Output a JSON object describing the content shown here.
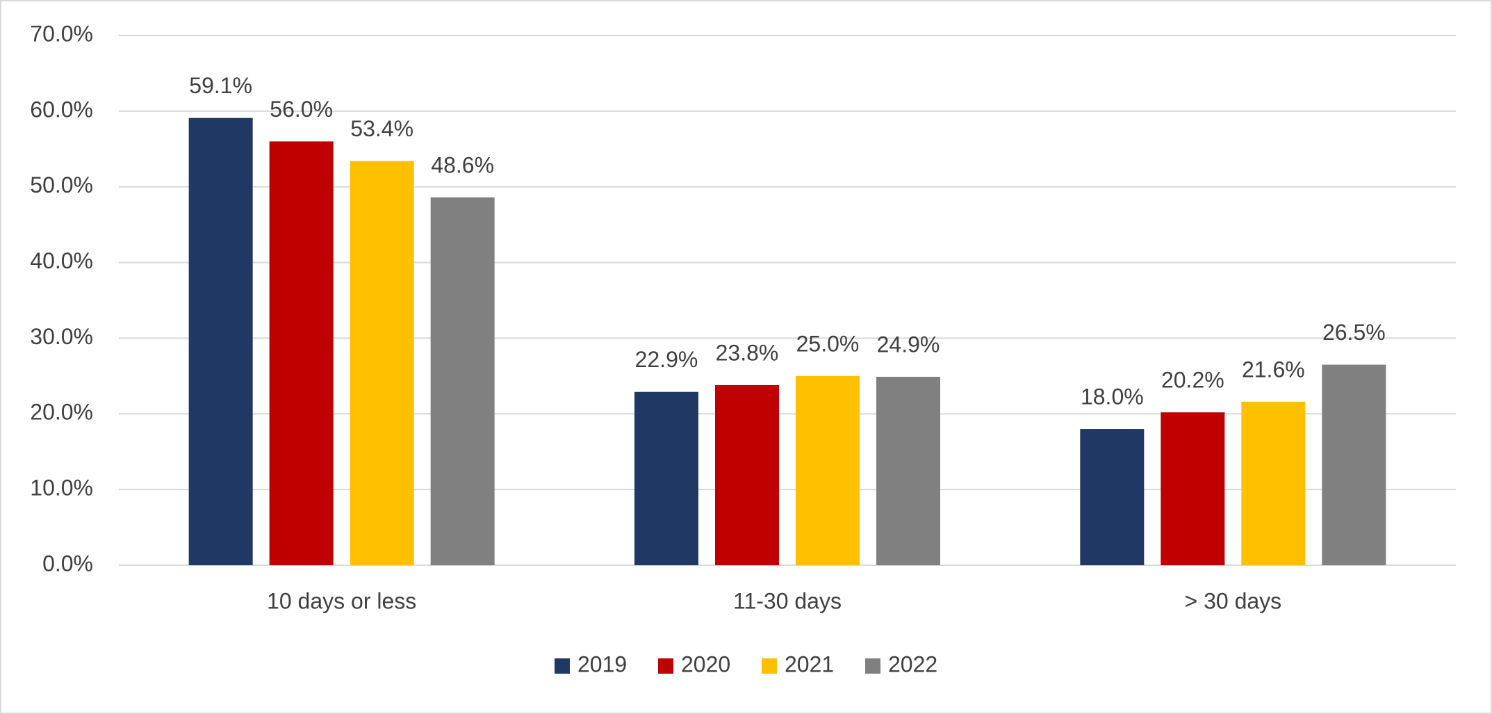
{
  "chart_data": {
    "type": "bar",
    "categories": [
      "10 days or less",
      "11-30 days",
      "> 30 days"
    ],
    "series": [
      {
        "name": "2019",
        "color": "#203864",
        "values": [
          59.1,
          22.9,
          18.0
        ],
        "value_labels": [
          "59.1%",
          "22.9%",
          "18.0%"
        ]
      },
      {
        "name": "2020",
        "color": "#c00000",
        "values": [
          56.0,
          23.8,
          20.2
        ],
        "value_labels": [
          "56.0%",
          "23.8%",
          "20.2%"
        ]
      },
      {
        "name": "2021",
        "color": "#ffc000",
        "values": [
          53.4,
          25.0,
          21.6
        ],
        "value_labels": [
          "53.4%",
          "25.0%",
          "21.6%"
        ]
      },
      {
        "name": "2022",
        "color": "#808080",
        "values": [
          48.6,
          24.9,
          26.5
        ],
        "value_labels": [
          "48.6%",
          "24.9%",
          "26.5%"
        ]
      }
    ],
    "ylim": [
      0,
      70
    ],
    "yticks": [
      {
        "value": 0,
        "label": "0.0%"
      },
      {
        "value": 10,
        "label": "10.0%"
      },
      {
        "value": 20,
        "label": "20.0%"
      },
      {
        "value": 30,
        "label": "30.0%"
      },
      {
        "value": 40,
        "label": "40.0%"
      },
      {
        "value": 50,
        "label": "50.0%"
      },
      {
        "value": 60,
        "label": "60.0%"
      },
      {
        "value": 70,
        "label": "70.0%"
      }
    ],
    "grid": true,
    "legend": "bottom"
  }
}
